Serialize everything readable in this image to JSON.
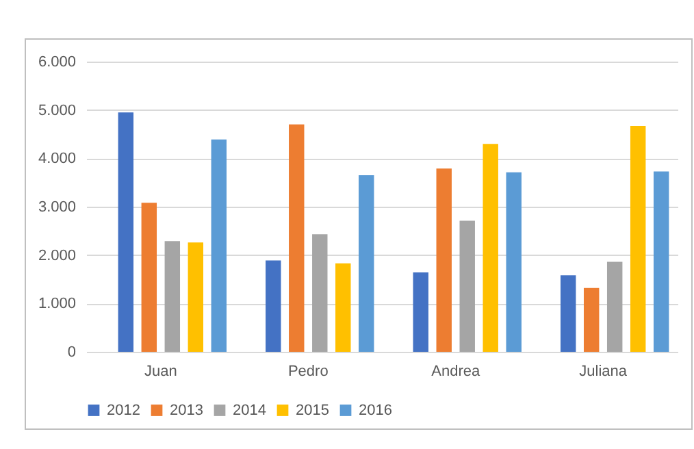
{
  "chart_data": {
    "type": "bar",
    "categories": [
      "Juan",
      "Pedro",
      "Andrea",
      "Juliana"
    ],
    "series": [
      {
        "name": "2012",
        "color": "#4472c4",
        "values": [
          4950,
          1890,
          1640,
          1580
        ]
      },
      {
        "name": "2013",
        "color": "#ed7d31",
        "values": [
          3080,
          4700,
          3790,
          1320
        ]
      },
      {
        "name": "2014",
        "color": "#a5a5a5",
        "values": [
          2290,
          2430,
          2710,
          1860
        ]
      },
      {
        "name": "2015",
        "color": "#ffc000",
        "values": [
          2260,
          1830,
          4300,
          4670
        ]
      },
      {
        "name": "2016",
        "color": "#5b9bd5",
        "values": [
          4390,
          3650,
          3710,
          3730
        ]
      }
    ],
    "ylim": [
      0,
      6000
    ],
    "yticks": [
      0,
      {
        "value": 1000,
        "label": "1.000"
      },
      {
        "value": 2000,
        "label": "2.000"
      },
      {
        "value": 3000,
        "label": "3.000"
      },
      {
        "value": 4000,
        "label": "4.000"
      },
      {
        "value": 5000,
        "label": "5.000"
      },
      {
        "value": 6000,
        "label": "6.000"
      }
    ],
    "grid": "y",
    "legend": "bottom"
  }
}
